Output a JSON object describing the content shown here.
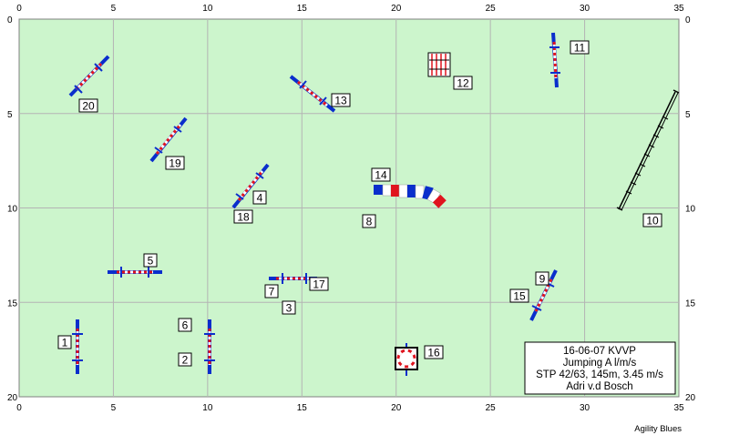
{
  "course_info": {
    "line1": "16-06-07 KVVP",
    "line2": "Jumping A l/m/s",
    "line3": "STP 42/63, 145m, 3.45 m/s",
    "line4": "Adri v.d Bosch"
  },
  "credit": "Agility Blues",
  "axis": {
    "x_ticks": [
      "0",
      "5",
      "10",
      "15",
      "20",
      "25",
      "30",
      "35"
    ],
    "y_ticks": [
      "0",
      "5",
      "10",
      "15",
      "20"
    ]
  },
  "obstacle_labels": [
    "1",
    "2",
    "3",
    "4",
    "5",
    "6",
    "7",
    "8",
    "9",
    "10",
    "11",
    "12",
    "13",
    "14",
    "15",
    "16",
    "17",
    "18",
    "19",
    "20"
  ],
  "colors": {
    "field": "#ccf5cc",
    "grid": "#b4b4b4",
    "wing": "#0a2ecc",
    "pole_red": "#e0141e",
    "pole_white": "#ffffff"
  }
}
